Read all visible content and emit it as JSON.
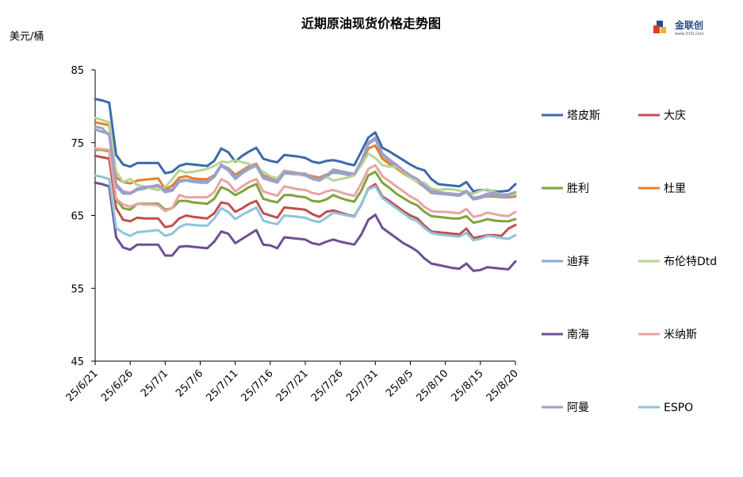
{
  "header": {
    "title": "近期原油现货价格走势图",
    "unit": "美元/桶",
    "logo_name": "金联创",
    "logo_sub": "www.315i.com"
  },
  "chart_data": {
    "type": "line",
    "title": "近期原油现货价格走势图",
    "ylabel": "美元/桶",
    "ylim": [
      45,
      85
    ],
    "yticks": [
      45,
      55,
      65,
      75,
      85
    ],
    "x_tick_labels": [
      "25/6/21",
      "25/6/26",
      "25/7/1",
      "25/7/6",
      "25/7/11",
      "25/7/16",
      "25/7/21",
      "25/7/26",
      "25/7/31",
      "25/8/5",
      "25/8/10",
      "25/8/15",
      "25/8/20"
    ],
    "grid": false,
    "legend_position": "right",
    "series": [
      {
        "name": "塔皮斯",
        "color": "#3b6aaa",
        "values": [
          81.0,
          80.8,
          80.5,
          73.3,
          72.0,
          71.7,
          72.2,
          72.2,
          72.2,
          72.2,
          70.8,
          71.0,
          71.8,
          72.1,
          72.0,
          71.9,
          71.8,
          72.5,
          74.2,
          73.7,
          72.4,
          73.2,
          73.8,
          74.3,
          72.8,
          72.5,
          72.3,
          73.3,
          73.2,
          73.1,
          72.9,
          72.4,
          72.2,
          72.5,
          72.6,
          72.4,
          72.1,
          71.9,
          73.8,
          75.7,
          76.4,
          74.3,
          73.8,
          73.2,
          72.6,
          72.0,
          71.5,
          71.2,
          70.0,
          69.3,
          69.2,
          69.1,
          69.0,
          69.6,
          68.3,
          68.5,
          68.5,
          68.3,
          68.3,
          68.4,
          69.3
        ]
      },
      {
        "name": "大庆",
        "color": "#c0504d",
        "values": [
          73.2,
          73.0,
          72.8,
          66.0,
          64.4,
          64.2,
          64.7,
          64.6,
          64.6,
          64.6,
          63.4,
          63.6,
          64.6,
          65.0,
          64.8,
          64.7,
          64.6,
          65.3,
          66.8,
          66.6,
          65.5,
          66.0,
          66.6,
          67.0,
          65.3,
          65.0,
          64.7,
          66.1,
          66.0,
          65.9,
          65.8,
          65.2,
          64.8,
          65.5,
          65.7,
          65.4,
          65.1,
          64.9,
          66.5,
          68.7,
          69.3,
          67.6,
          67.0,
          66.3,
          65.6,
          65.0,
          64.6,
          63.6,
          62.8,
          62.7,
          62.6,
          62.5,
          62.4,
          63.2,
          61.9,
          62.1,
          62.3,
          62.3,
          62.2,
          63.2,
          63.7
        ]
      },
      {
        "name": "胜利",
        "color": "#7fa33c",
        "values": [
          74.0,
          74.0,
          73.8,
          67.2,
          66.0,
          65.8,
          66.6,
          66.6,
          66.6,
          66.6,
          65.8,
          66.0,
          67.0,
          67.0,
          66.8,
          66.7,
          66.6,
          67.3,
          68.9,
          68.5,
          67.8,
          68.3,
          68.9,
          69.3,
          67.3,
          67.0,
          66.8,
          67.8,
          67.8,
          67.6,
          67.5,
          67.0,
          66.9,
          67.2,
          67.8,
          67.4,
          67.1,
          66.9,
          68.4,
          70.5,
          71.0,
          69.5,
          68.8,
          68.0,
          67.4,
          66.8,
          66.4,
          65.5,
          64.9,
          64.8,
          64.7,
          64.6,
          64.6,
          64.9,
          64.0,
          64.2,
          64.5,
          64.3,
          64.2,
          64.2,
          64.5
        ]
      },
      {
        "name": "杜里",
        "color": "#e0822c",
        "values": [
          77.8,
          77.6,
          77.4,
          70.2,
          69.6,
          69.4,
          69.8,
          69.9,
          70.0,
          70.1,
          68.6,
          69.1,
          70.2,
          70.4,
          70.1,
          70.0,
          70.0,
          70.5,
          71.9,
          71.5,
          70.6,
          71.2,
          71.8,
          72.1,
          70.5,
          70.2,
          70.0,
          71.0,
          71.0,
          70.8,
          70.7,
          70.4,
          70.2,
          70.6,
          70.9,
          70.8,
          70.6,
          70.5,
          72.2,
          74.2,
          74.6,
          72.8,
          72.1,
          71.5,
          70.8,
          70.2,
          69.6,
          68.9,
          68.1,
          68.0,
          68.0,
          68.0,
          67.8,
          68.3,
          67.3,
          67.5,
          67.6,
          67.6,
          67.5,
          67.5,
          67.6
        ]
      },
      {
        "name": "迪拜",
        "color": "#8ba8cc",
        "values": [
          77.2,
          77.0,
          76.0,
          69.0,
          68.0,
          68.0,
          68.5,
          68.7,
          68.9,
          69.0,
          68.2,
          68.4,
          69.6,
          69.8,
          69.6,
          69.5,
          69.5,
          70.3,
          71.8,
          71.2,
          70.0,
          70.8,
          71.4,
          71.8,
          70.1,
          69.8,
          69.5,
          70.8,
          70.7,
          70.6,
          70.5,
          70.0,
          69.8,
          70.3,
          71.0,
          70.8,
          70.6,
          70.5,
          72.3,
          74.8,
          75.5,
          73.3,
          72.5,
          71.8,
          71.0,
          70.3,
          69.8,
          68.9,
          68.2,
          68.0,
          67.9,
          67.8,
          67.7,
          68.2,
          67.2,
          67.4,
          67.7,
          67.8,
          67.5,
          67.6,
          67.9
        ]
      },
      {
        "name": "布伦特Dtd",
        "color": "#b7d594",
        "values": [
          78.4,
          78.1,
          77.8,
          71.0,
          69.6,
          70.0,
          69.2,
          69.0,
          68.7,
          68.5,
          68.9,
          70.0,
          71.2,
          70.9,
          71.0,
          71.2,
          71.4,
          71.8,
          72.4,
          72.3,
          72.6,
          72.3,
          72.1,
          71.6,
          71.0,
          70.4,
          70.1,
          71.2,
          71.0,
          70.6,
          70.8,
          70.2,
          70.0,
          70.3,
          69.8,
          70.0,
          70.2,
          70.5,
          71.9,
          73.5,
          72.9,
          71.9,
          71.7,
          71.7,
          71.0,
          70.2,
          69.6,
          69.5,
          68.7,
          68.5,
          68.6,
          68.6,
          68.4,
          68.2,
          68.0,
          68.4,
          68.6,
          68.2,
          67.9,
          67.9,
          67.9
        ]
      },
      {
        "name": "南海",
        "color": "#6e4f92",
        "values": [
          69.5,
          69.3,
          69.0,
          62.0,
          60.6,
          60.3,
          61.0,
          61.0,
          61.0,
          61.0,
          59.5,
          59.5,
          60.7,
          60.8,
          60.7,
          60.6,
          60.5,
          61.4,
          62.8,
          62.5,
          61.2,
          61.8,
          62.4,
          63.0,
          61.0,
          60.9,
          60.5,
          62.0,
          61.9,
          61.8,
          61.7,
          61.2,
          61.0,
          61.4,
          61.7,
          61.4,
          61.2,
          61.0,
          62.4,
          64.4,
          65.1,
          63.3,
          62.6,
          61.9,
          61.2,
          60.7,
          60.1,
          59.1,
          58.4,
          58.2,
          58.0,
          57.8,
          57.7,
          58.4,
          57.4,
          57.5,
          57.9,
          57.8,
          57.7,
          57.6,
          58.7
        ]
      },
      {
        "name": "米纳斯",
        "color": "#e6a5a2",
        "values": [
          74.2,
          74.1,
          74.0,
          67.3,
          66.5,
          66.2,
          66.6,
          66.5,
          66.5,
          66.4,
          65.6,
          66.0,
          67.8,
          67.5,
          67.5,
          67.5,
          67.5,
          68.2,
          70.0,
          69.5,
          68.3,
          69.0,
          69.6,
          70.0,
          68.3,
          68.0,
          67.7,
          69.0,
          68.8,
          68.6,
          68.5,
          68.1,
          67.9,
          68.3,
          68.5,
          68.2,
          67.9,
          67.7,
          69.4,
          71.4,
          71.9,
          70.4,
          69.7,
          69.0,
          68.3,
          67.6,
          67.1,
          66.2,
          65.6,
          65.5,
          65.5,
          65.4,
          65.3,
          65.9,
          64.8,
          65.0,
          65.4,
          65.2,
          65.0,
          64.9,
          65.5
        ]
      },
      {
        "name": "阿曼",
        "color": "#a59bc8",
        "values": [
          76.8,
          76.5,
          76.2,
          69.3,
          68.3,
          68.1,
          68.7,
          68.9,
          69.0,
          69.2,
          68.4,
          68.6,
          69.8,
          69.9,
          69.8,
          69.7,
          69.7,
          70.5,
          72.0,
          71.4,
          70.3,
          71.0,
          71.6,
          72.0,
          70.3,
          70.0,
          69.7,
          71.0,
          70.9,
          70.8,
          70.7,
          70.2,
          70.0,
          70.5,
          71.3,
          71.1,
          70.9,
          70.7,
          72.5,
          75.0,
          75.7,
          73.5,
          72.7,
          72.0,
          71.2,
          70.5,
          70.0,
          69.1,
          68.4,
          68.2,
          68.1,
          68.0,
          67.9,
          68.4,
          67.4,
          67.6,
          68.0,
          68.1,
          67.8,
          67.9,
          68.2
        ]
      },
      {
        "name": "ESPO",
        "color": "#8ec4db",
        "values": [
          70.5,
          70.3,
          70.0,
          63.3,
          62.6,
          62.2,
          62.7,
          62.8,
          62.9,
          63.0,
          62.2,
          62.5,
          63.4,
          63.8,
          63.7,
          63.6,
          63.6,
          64.6,
          66.0,
          65.5,
          64.5,
          65.1,
          65.6,
          66.1,
          64.3,
          64.0,
          63.8,
          65.0,
          64.9,
          64.8,
          64.7,
          64.3,
          64.1,
          64.7,
          65.4,
          65.2,
          65.0,
          64.8,
          66.6,
          68.6,
          69.0,
          67.4,
          66.7,
          66.0,
          65.3,
          64.6,
          64.2,
          63.3,
          62.6,
          62.4,
          62.3,
          62.2,
          62.1,
          62.6,
          61.6,
          61.8,
          62.2,
          62.1,
          61.9,
          61.8,
          62.3
        ]
      }
    ]
  }
}
